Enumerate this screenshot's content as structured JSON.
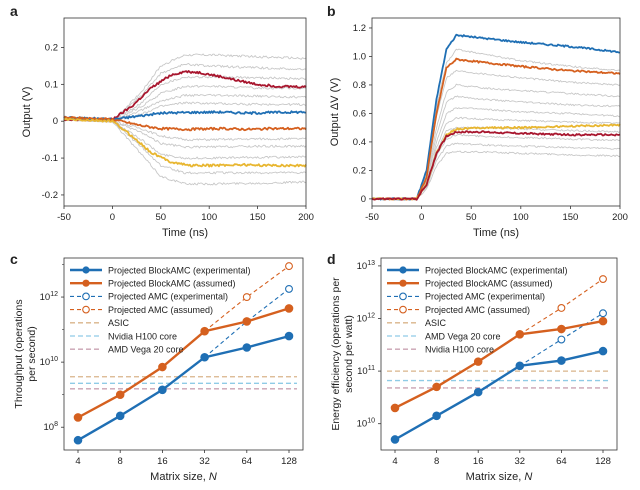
{
  "colors": {
    "blue": "#1f6fb4",
    "orange": "#d5601f",
    "red": "#a8162e",
    "yellow": "#e8b630",
    "gray": "#c8c8c8",
    "asic": "#d9b48a",
    "teal": "#8fcbe6",
    "mauve": "#c9a2b2"
  },
  "chart_data": [
    {
      "panel": "a",
      "type": "line",
      "xlabel": "Time (ns)",
      "ylabel": "Output (V)",
      "xlim": [
        -50,
        200
      ],
      "ylim": [
        -0.23,
        0.28
      ],
      "xticks": [
        -50,
        0,
        50,
        100,
        150,
        200
      ],
      "xtick_labels": [
        "-50",
        "0",
        "50",
        "100",
        "150",
        "200"
      ],
      "yticks": [
        -0.2,
        -0.1,
        0,
        0.1,
        0.2
      ],
      "ytick_labels": [
        "-0.2",
        "-0.1",
        "0",
        "0.1",
        "0.2"
      ],
      "grid": false,
      "series": [
        {
          "color_key": "red",
          "x": [
            -50,
            0,
            20,
            40,
            60,
            75,
            90,
            110,
            130,
            150,
            170,
            200
          ],
          "y": [
            0.005,
            0.005,
            0.04,
            0.09,
            0.125,
            0.135,
            0.132,
            0.122,
            0.11,
            0.1,
            0.095,
            0.093
          ]
        },
        {
          "color_key": "blue",
          "x": [
            -50,
            0,
            30,
            50,
            80,
            110,
            140,
            170,
            200
          ],
          "y": [
            0.01,
            0.005,
            0.015,
            0.022,
            0.024,
            0.025,
            0.022,
            0.024,
            0.025
          ]
        },
        {
          "color_key": "orange",
          "x": [
            -50,
            0,
            30,
            50,
            80,
            110,
            140,
            170,
            200
          ],
          "y": [
            0.01,
            0.005,
            -0.012,
            -0.02,
            -0.022,
            -0.02,
            -0.022,
            -0.02,
            -0.02
          ]
        },
        {
          "color_key": "yellow",
          "x": [
            -50,
            0,
            20,
            40,
            60,
            80,
            100,
            130,
            160,
            200
          ],
          "y": [
            0.005,
            0.0,
            -0.04,
            -0.085,
            -0.11,
            -0.12,
            -0.12,
            -0.118,
            -0.12,
            -0.12
          ]
        },
        {
          "color_key": "gray",
          "x": [
            -50,
            0,
            30,
            50,
            75,
            100,
            150,
            200
          ],
          "y": [
            0.005,
            0.0,
            0.08,
            0.15,
            0.18,
            0.18,
            0.175,
            0.17
          ]
        },
        {
          "color_key": "gray",
          "x": [
            -50,
            0,
            30,
            50,
            75,
            100,
            150,
            200
          ],
          "y": [
            0.005,
            0.0,
            0.07,
            0.13,
            0.155,
            0.15,
            0.145,
            0.14
          ]
        },
        {
          "color_key": "gray",
          "x": [
            -50,
            0,
            30,
            50,
            75,
            100,
            150,
            200
          ],
          "y": [
            0.005,
            0.0,
            0.05,
            0.1,
            0.12,
            0.12,
            0.118,
            0.115
          ]
        },
        {
          "color_key": "gray",
          "x": [
            -50,
            0,
            30,
            50,
            75,
            100,
            150,
            200
          ],
          "y": [
            0.005,
            0.0,
            0.04,
            0.075,
            0.095,
            0.095,
            0.09,
            0.09
          ]
        },
        {
          "color_key": "gray",
          "x": [
            -50,
            0,
            30,
            50,
            75,
            100,
            150,
            200
          ],
          "y": [
            0.005,
            0.0,
            0.03,
            0.055,
            0.07,
            0.07,
            0.068,
            0.065
          ]
        },
        {
          "color_key": "gray",
          "x": [
            -50,
            0,
            30,
            50,
            75,
            100,
            150,
            200
          ],
          "y": [
            0.005,
            0.0,
            0.02,
            0.04,
            0.05,
            0.048,
            0.046,
            0.045
          ]
        },
        {
          "color_key": "gray",
          "x": [
            -50,
            0,
            30,
            50,
            75,
            100,
            150,
            200
          ],
          "y": [
            0.005,
            0.0,
            -0.02,
            -0.04,
            -0.05,
            -0.05,
            -0.048,
            -0.048
          ]
        },
        {
          "color_key": "gray",
          "x": [
            -50,
            0,
            30,
            50,
            75,
            100,
            150,
            200
          ],
          "y": [
            0.005,
            0.0,
            -0.03,
            -0.06,
            -0.07,
            -0.07,
            -0.068,
            -0.068
          ]
        },
        {
          "color_key": "gray",
          "x": [
            -50,
            0,
            30,
            50,
            75,
            100,
            150,
            200
          ],
          "y": [
            0.005,
            0.0,
            -0.05,
            -0.09,
            -0.1,
            -0.1,
            -0.098,
            -0.097
          ]
        },
        {
          "color_key": "gray",
          "x": [
            -50,
            0,
            30,
            50,
            75,
            100,
            150,
            200
          ],
          "y": [
            0.005,
            0.0,
            -0.07,
            -0.12,
            -0.14,
            -0.14,
            -0.14,
            -0.14
          ]
        },
        {
          "color_key": "gray",
          "x": [
            -50,
            0,
            30,
            50,
            75,
            100,
            150,
            200
          ],
          "y": [
            0.005,
            0.0,
            -0.09,
            -0.15,
            -0.17,
            -0.17,
            -0.168,
            -0.165
          ]
        }
      ]
    },
    {
      "panel": "b",
      "type": "line",
      "xlabel": "Time (ns)",
      "ylabel": "Output ΔV (V)",
      "xlim": [
        -50,
        200
      ],
      "ylim": [
        -0.05,
        1.27
      ],
      "xticks": [
        -50,
        0,
        50,
        100,
        150,
        200
      ],
      "xtick_labels": [
        "-50",
        "0",
        "50",
        "100",
        "150",
        "200"
      ],
      "yticks": [
        0,
        0.2,
        0.4,
        0.6,
        0.8,
        1.0,
        1.2
      ],
      "ytick_labels": [
        "0",
        "0.2",
        "0.4",
        "0.6",
        "0.8",
        "1.0",
        "1.2"
      ],
      "grid": false,
      "series": [
        {
          "color_key": "blue",
          "x": [
            -50,
            -5,
            5,
            15,
            25,
            35,
            60,
            100,
            150,
            200
          ],
          "y": [
            0.0,
            0.0,
            0.2,
            0.7,
            1.05,
            1.15,
            1.13,
            1.1,
            1.07,
            1.03
          ]
        },
        {
          "color_key": "orange",
          "x": [
            -50,
            -5,
            5,
            15,
            25,
            35,
            60,
            100,
            150,
            200
          ],
          "y": [
            0.0,
            0.0,
            0.15,
            0.6,
            0.92,
            0.98,
            0.96,
            0.93,
            0.9,
            0.88
          ]
        },
        {
          "color_key": "yellow",
          "x": [
            -50,
            -5,
            5,
            15,
            25,
            35,
            60,
            100,
            150,
            200
          ],
          "y": [
            0.0,
            0.0,
            0.1,
            0.32,
            0.45,
            0.49,
            0.5,
            0.5,
            0.51,
            0.52
          ]
        },
        {
          "color_key": "red",
          "x": [
            -50,
            -5,
            5,
            15,
            25,
            35,
            60,
            100,
            150,
            200
          ],
          "y": [
            0.0,
            0.0,
            0.1,
            0.32,
            0.44,
            0.47,
            0.47,
            0.46,
            0.45,
            0.45
          ]
        },
        {
          "color_key": "gray",
          "x": [
            -50,
            -5,
            5,
            15,
            25,
            35,
            60,
            100,
            150,
            200
          ],
          "y": [
            0.0,
            0.0,
            0.18,
            0.65,
            0.95,
            1.05,
            1.02,
            0.97,
            0.93,
            0.9
          ]
        },
        {
          "color_key": "gray",
          "x": [
            -50,
            -5,
            5,
            15,
            25,
            35,
            60,
            100,
            150,
            200
          ],
          "y": [
            0.0,
            0.0,
            0.16,
            0.58,
            0.85,
            0.9,
            0.88,
            0.85,
            0.82,
            0.8
          ]
        },
        {
          "color_key": "gray",
          "x": [
            -50,
            -5,
            5,
            15,
            25,
            35,
            60,
            100,
            150,
            200
          ],
          "y": [
            0.0,
            0.0,
            0.14,
            0.5,
            0.75,
            0.8,
            0.78,
            0.76,
            0.74,
            0.72
          ]
        },
        {
          "color_key": "gray",
          "x": [
            -50,
            -5,
            5,
            15,
            25,
            35,
            60,
            100,
            150,
            200
          ],
          "y": [
            0.0,
            0.0,
            0.13,
            0.45,
            0.68,
            0.72,
            0.7,
            0.68,
            0.66,
            0.65
          ]
        },
        {
          "color_key": "gray",
          "x": [
            -50,
            -5,
            5,
            15,
            25,
            35,
            60,
            100,
            150,
            200
          ],
          "y": [
            0.0,
            0.0,
            0.12,
            0.4,
            0.6,
            0.64,
            0.63,
            0.61,
            0.6,
            0.58
          ]
        },
        {
          "color_key": "gray",
          "x": [
            -50,
            -5,
            5,
            15,
            25,
            35,
            60,
            100,
            150,
            200
          ],
          "y": [
            0.0,
            0.0,
            0.11,
            0.36,
            0.53,
            0.57,
            0.56,
            0.55,
            0.54,
            0.53
          ]
        },
        {
          "color_key": "gray",
          "x": [
            -50,
            -5,
            5,
            15,
            25,
            35,
            60,
            100,
            150,
            200
          ],
          "y": [
            0.0,
            0.0,
            0.1,
            0.33,
            0.48,
            0.5,
            0.5,
            0.49,
            0.48,
            0.47
          ]
        },
        {
          "color_key": "gray",
          "x": [
            -50,
            -5,
            5,
            15,
            25,
            35,
            60,
            100,
            150,
            200
          ],
          "y": [
            0.0,
            0.0,
            0.09,
            0.3,
            0.42,
            0.45,
            0.44,
            0.43,
            0.42,
            0.41
          ]
        },
        {
          "color_key": "gray",
          "x": [
            -50,
            -5,
            5,
            15,
            25,
            35,
            60,
            100,
            150,
            200
          ],
          "y": [
            0.0,
            0.0,
            0.08,
            0.27,
            0.37,
            0.39,
            0.38,
            0.37,
            0.36,
            0.35
          ]
        },
        {
          "color_key": "gray",
          "x": [
            -50,
            -5,
            5,
            15,
            25,
            35,
            60,
            100,
            150,
            200
          ],
          "y": [
            0.0,
            0.0,
            0.07,
            0.23,
            0.32,
            0.33,
            0.33,
            0.32,
            0.31,
            0.3
          ]
        }
      ]
    },
    {
      "panel": "c",
      "type": "line",
      "xscale": "log2",
      "yscale": "log",
      "xlabel": "Matrix size, ",
      "xlabel_italic": "N",
      "ylabel": "Throughput (operations per second)",
      "ylabel_lines": [
        "Throughput (operations",
        "per second)"
      ],
      "x": [
        4,
        8,
        16,
        32,
        64,
        128
      ],
      "xtick_labels": [
        "4",
        "8",
        "16",
        "32",
        "64",
        "128"
      ],
      "ylim_exp": [
        7.3,
        13.2
      ],
      "yticks_exp": [
        8,
        10,
        12
      ],
      "ytick_labels": [
        {
          "b": "10",
          "e": "8"
        },
        {
          "b": "10",
          "e": "10"
        },
        {
          "b": "10",
          "e": "12"
        }
      ],
      "legend_position": "top-left",
      "series": [
        {
          "name": "Projected BlockAMC (experimental)",
          "style": "solid-filled",
          "color_key": "blue",
          "x": [
            4,
            8,
            16,
            32,
            64,
            128
          ],
          "y_exp": [
            7.6,
            8.35,
            9.15,
            10.15,
            10.45,
            10.8
          ]
        },
        {
          "name": "Projected BlockAMC (assumed)",
          "style": "solid-filled",
          "color_key": "orange",
          "x": [
            4,
            8,
            16,
            32,
            64,
            128
          ],
          "y_exp": [
            8.3,
            9.0,
            9.85,
            10.95,
            11.25,
            11.65
          ]
        },
        {
          "name": "Projected AMC (experimental)",
          "style": "dashed-open",
          "color_key": "blue",
          "x": [
            32,
            64,
            128
          ],
          "y_exp": [
            10.15,
            11.25,
            12.25
          ]
        },
        {
          "name": "Projected AMC (assumed)",
          "style": "dashed-open",
          "color_key": "orange",
          "x": [
            32,
            64,
            128
          ],
          "y_exp": [
            10.95,
            12.0,
            12.95
          ]
        },
        {
          "name": "ASIC",
          "style": "hline",
          "color_key": "asic",
          "y_exp": 9.55
        },
        {
          "name": "Nvidia H100 core",
          "style": "hline",
          "color_key": "teal",
          "y_exp": 9.35
        },
        {
          "name": "AMD Vega 20 core",
          "style": "hline",
          "color_key": "mauve",
          "y_exp": 9.18
        }
      ]
    },
    {
      "panel": "d",
      "type": "line",
      "xscale": "log2",
      "yscale": "log",
      "xlabel": "Matrix size, ",
      "xlabel_italic": "N",
      "ylabel": "Energy efficiency (operations per second per watt)",
      "ylabel_lines": [
        "Energy efficiency (operations per",
        "second per watt)"
      ],
      "x": [
        4,
        8,
        16,
        32,
        64,
        128
      ],
      "xtick_labels": [
        "4",
        "8",
        "16",
        "32",
        "64",
        "128"
      ],
      "ylim_exp": [
        9.5,
        13.15
      ],
      "yticks_exp": [
        10,
        11,
        12,
        13
      ],
      "ytick_labels": [
        {
          "b": "10",
          "e": "10"
        },
        {
          "b": "10",
          "e": "11"
        },
        {
          "b": "10",
          "e": "12"
        },
        {
          "b": "10",
          "e": "13"
        }
      ],
      "legend_position": "top-left",
      "series": [
        {
          "name": "Projected BlockAMC (experimental)",
          "style": "solid-filled",
          "color_key": "blue",
          "x": [
            4,
            8,
            16,
            32,
            64,
            128
          ],
          "y_exp": [
            9.7,
            10.15,
            10.6,
            11.1,
            11.2,
            11.38
          ]
        },
        {
          "name": "Projected BlockAMC (assumed)",
          "style": "solid-filled",
          "color_key": "orange",
          "x": [
            4,
            8,
            16,
            32,
            64,
            128
          ],
          "y_exp": [
            10.3,
            10.7,
            11.18,
            11.7,
            11.8,
            11.95
          ]
        },
        {
          "name": "Projected AMC (experimental)",
          "style": "dashed-open",
          "color_key": "blue",
          "x": [
            32,
            64,
            128
          ],
          "y_exp": [
            11.1,
            11.6,
            12.1
          ]
        },
        {
          "name": "Projected AMC (assumed)",
          "style": "dashed-open",
          "color_key": "orange",
          "x": [
            32,
            64,
            128
          ],
          "y_exp": [
            11.7,
            12.2,
            12.75
          ]
        },
        {
          "name": "ASIC",
          "style": "hline",
          "color_key": "asic",
          "y_exp": 11.0
        },
        {
          "name": "AMD Vega 20 core",
          "style": "hline",
          "color_key": "teal",
          "y_exp": 10.82
        },
        {
          "name": "Nvidia H100 core",
          "style": "hline",
          "color_key": "mauve",
          "y_exp": 10.68
        }
      ]
    }
  ]
}
